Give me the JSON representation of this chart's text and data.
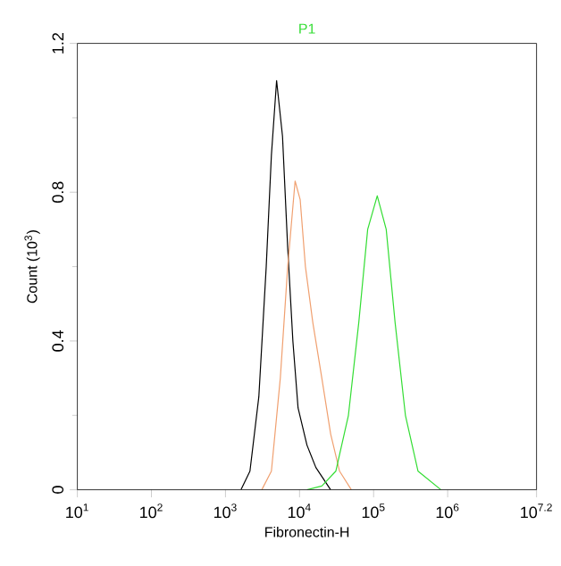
{
  "chart_data": {
    "type": "line",
    "title": "P1",
    "xlabel": "Fibronectin-H",
    "ylabel": "Count (10$^{3}$)",
    "log": "x",
    "grid": false,
    "marker": "none",
    "line_style": "solid",
    "xlim": [
      10,
      15848931.92
    ],
    "xticks": [
      {
        "value": 10,
        "label": "10$^{1}$"
      },
      {
        "value": 100,
        "label": "10$^{2}$"
      },
      {
        "value": 1000,
        "label": "10$^{3}$"
      },
      {
        "value": 10000,
        "label": "10$^{4}$"
      },
      {
        "value": 100000,
        "label": "10$^{5}$"
      },
      {
        "value": 1000000,
        "label": "10$^{6}$"
      },
      {
        "value": 15848931.92,
        "label": "10$^{7.2}$"
      }
    ],
    "ylim": [
      0,
      1.2
    ],
    "yticks": [
      0,
      0.4,
      0.8,
      1.2
    ],
    "series": [
      {
        "color": "#000000",
        "x": [
          1620,
          2140,
          2820,
          3550,
          4170,
          4900,
          5890,
          6920,
          8130,
          9550,
          12600,
          16600,
          26300
        ],
        "values": [
          0,
          0.05,
          0.25,
          0.6,
          0.9,
          1.1,
          0.95,
          0.65,
          0.4,
          0.22,
          0.12,
          0.06,
          0
        ]
      },
      {
        "color": "#f0a070",
        "x": [
          3090,
          4170,
          5500,
          6920,
          8710,
          10200,
          12000,
          15100,
          20000,
          26300,
          34700,
          50100
        ],
        "values": [
          0,
          0.05,
          0.3,
          0.6,
          0.83,
          0.78,
          0.6,
          0.45,
          0.3,
          0.15,
          0.05,
          0
        ]
      },
      {
        "color": "#33dd33",
        "x": [
          12600,
          20000,
          30900,
          45700,
          63100,
          83200,
          112000,
          148000,
          195000,
          269000,
          398000,
          813000
        ],
        "values": [
          0,
          0.01,
          0.05,
          0.2,
          0.45,
          0.7,
          0.79,
          0.7,
          0.45,
          0.2,
          0.05,
          0
        ]
      }
    ]
  }
}
